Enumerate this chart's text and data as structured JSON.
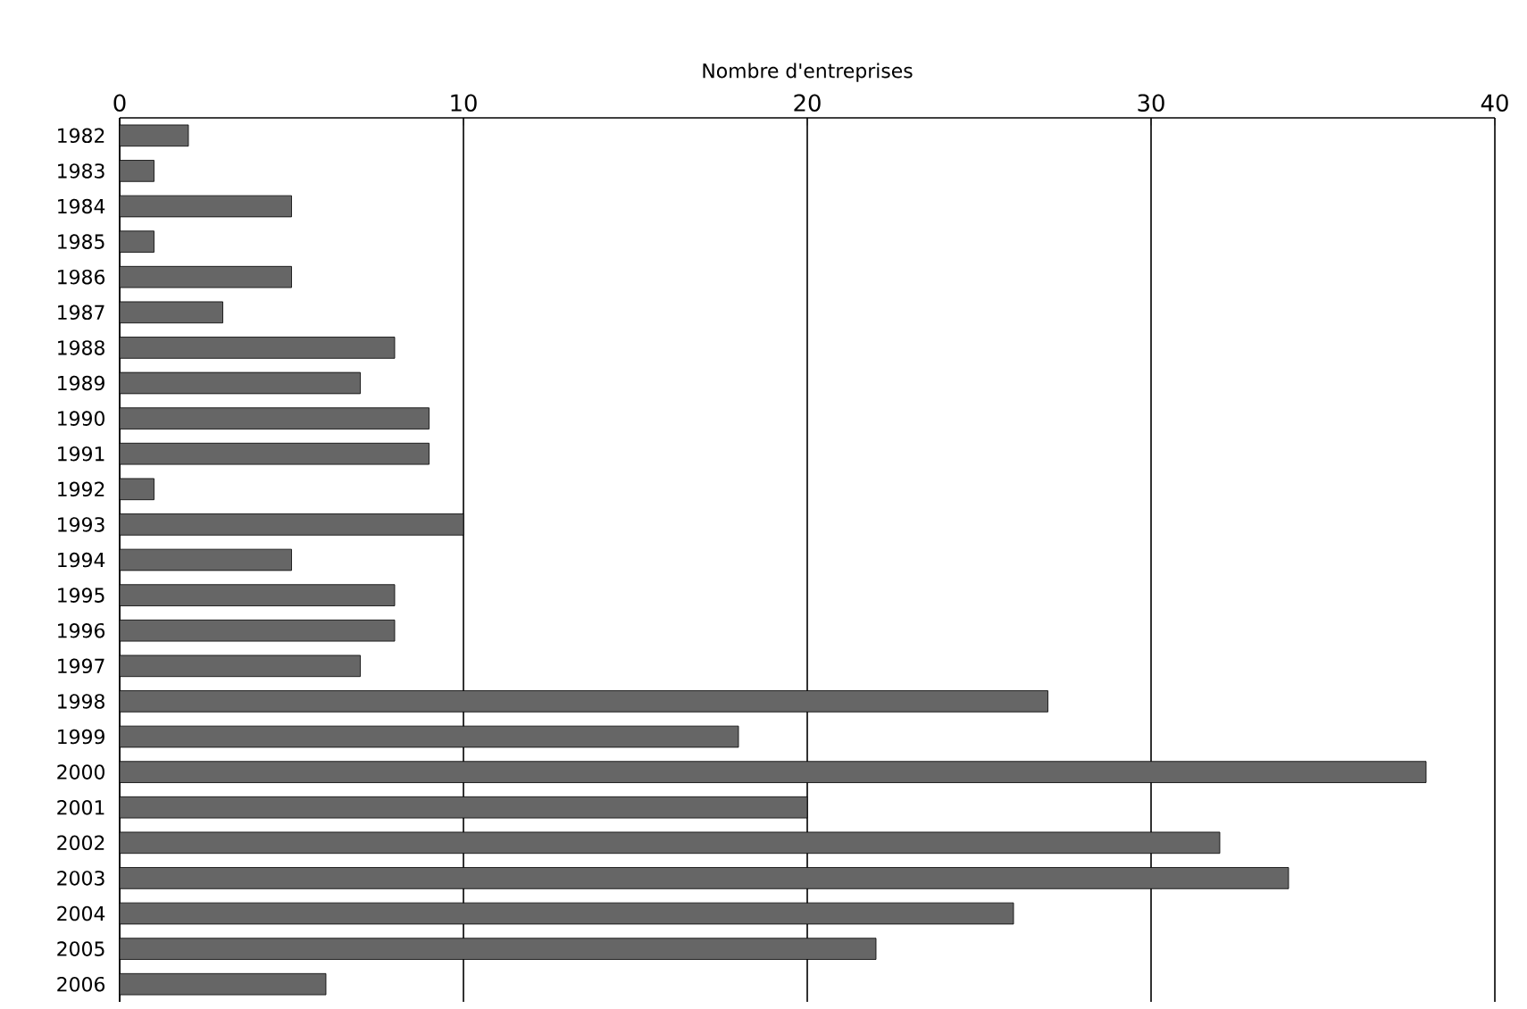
{
  "chart_data": {
    "type": "bar",
    "orientation": "horizontal",
    "xlabel": "Nombre d'entreprises",
    "categories": [
      "1982",
      "1983",
      "1984",
      "1985",
      "1986",
      "1987",
      "1988",
      "1989",
      "1990",
      "1991",
      "1992",
      "1993",
      "1994",
      "1995",
      "1996",
      "1997",
      "1998",
      "1999",
      "2000",
      "2001",
      "2002",
      "2003",
      "2004",
      "2005",
      "2006"
    ],
    "values": [
      2,
      1,
      5,
      1,
      5,
      3,
      8,
      7,
      9,
      9,
      1,
      10,
      5,
      8,
      8,
      7,
      27,
      18,
      38,
      20,
      32,
      34,
      26,
      22,
      6
    ],
    "color": "#666666",
    "xlim": [
      0,
      40
    ],
    "xticks": [
      0,
      10,
      20,
      30,
      40
    ],
    "grid": "x"
  }
}
